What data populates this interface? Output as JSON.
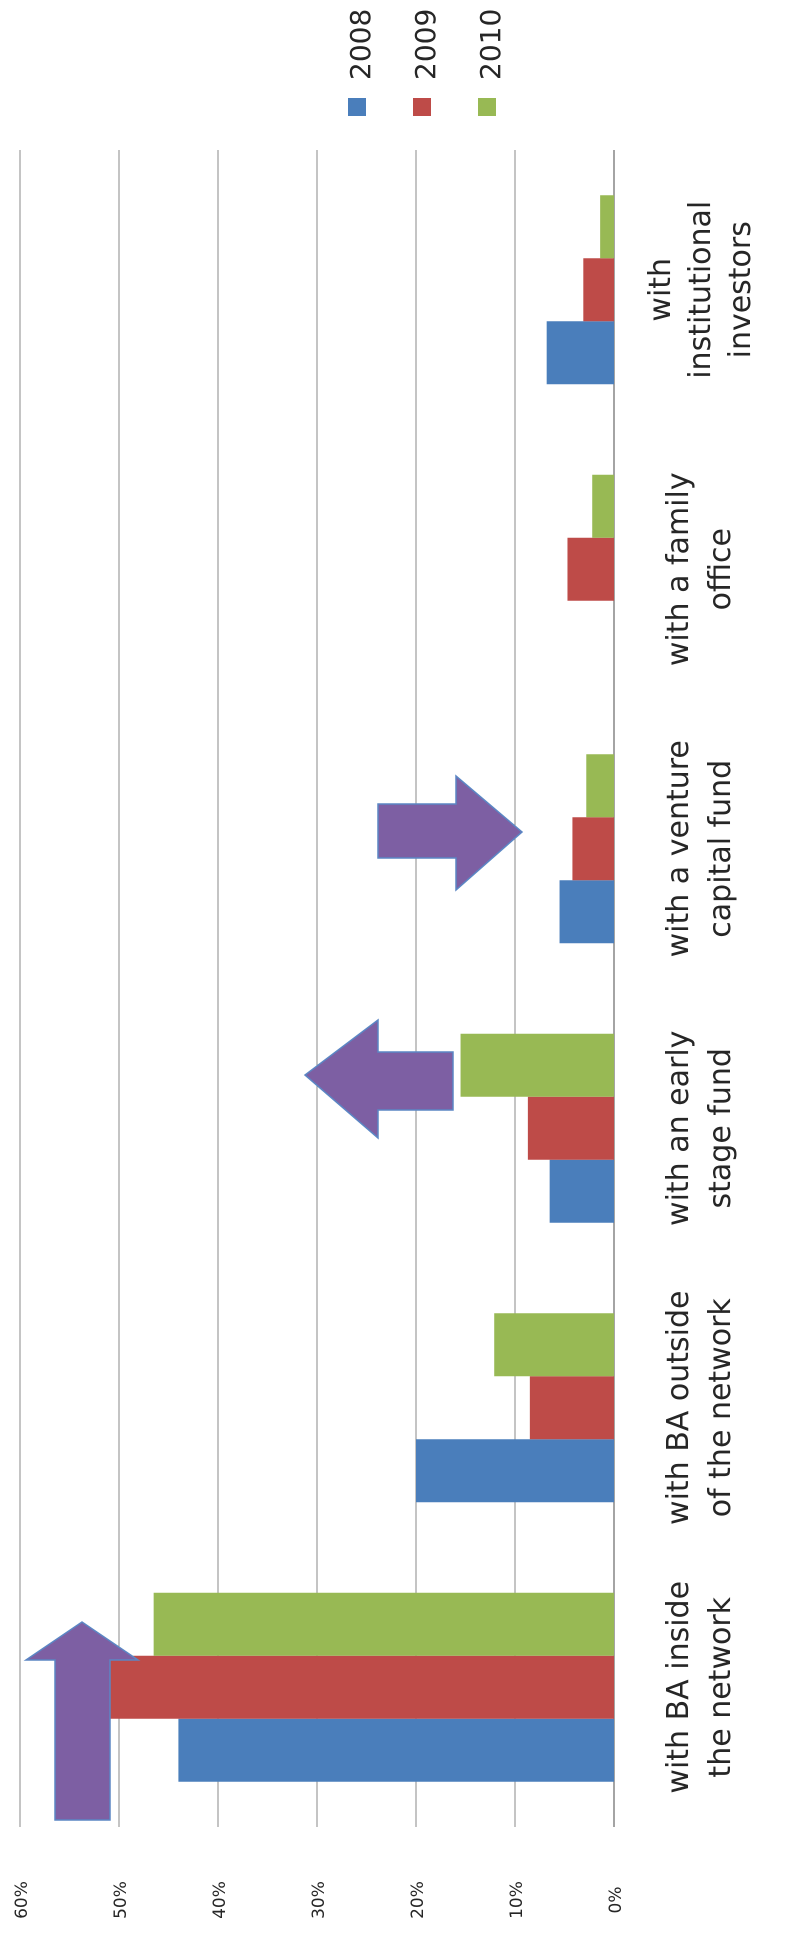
{
  "chart_data": {
    "type": "bar",
    "orientation": "vertical-bars, page rotated 90 degrees clockwise",
    "title": "",
    "xlabel": "",
    "ylabel": "",
    "categories": [
      "with BA inside the network",
      "with BA outside of the network",
      "with an early stage fund",
      "with a venture capital fund",
      "with a family office",
      "with institutional investors"
    ],
    "series": [
      {
        "name": "2008",
        "color": "#4a7ebb",
        "values": [
          44,
          20,
          6.5,
          5.5,
          0,
          6.8
        ]
      },
      {
        "name": "2009",
        "color": "#be4b48",
        "values": [
          51,
          8.5,
          8.7,
          4.2,
          4.7,
          3.1
        ]
      },
      {
        "name": "2010",
        "color": "#98b954",
        "values": [
          46.5,
          12.1,
          15.5,
          2.8,
          2.2,
          1.4
        ]
      }
    ],
    "ylim": [
      0,
      60
    ],
    "yticks": [
      "0%",
      "10%",
      "20%",
      "30%",
      "40%",
      "50%",
      "60%"
    ],
    "grid": true,
    "legend": "top-right",
    "annotations": [
      {
        "type": "arrow",
        "direction": "up",
        "category": "with BA inside the network",
        "color": "#7d5fa3"
      },
      {
        "type": "arrow",
        "direction": "up",
        "category": "with an early stage fund",
        "color": "#7d5fa3"
      },
      {
        "type": "arrow",
        "direction": "down",
        "category": "with a venture capital fund",
        "color": "#7d5fa3"
      }
    ]
  }
}
